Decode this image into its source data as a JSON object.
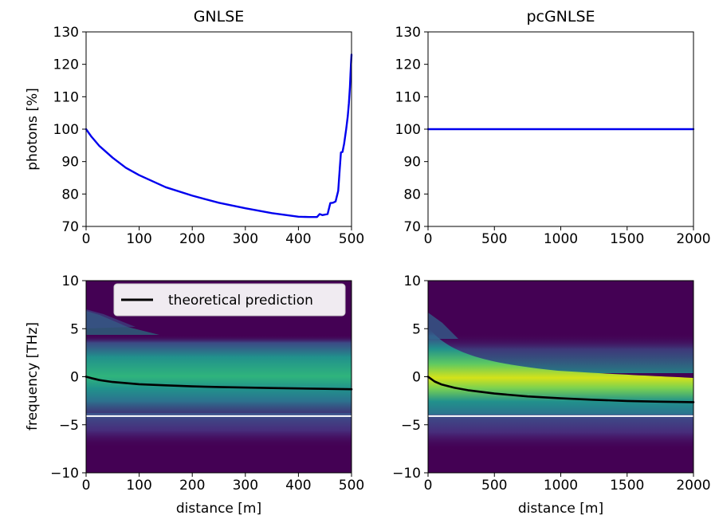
{
  "chart_data": [
    {
      "type": "line",
      "title": "GNLSE",
      "xlabel": "",
      "ylabel": "photons [%]",
      "xlim": [
        0,
        500
      ],
      "ylim": [
        70,
        130
      ],
      "xticks": [
        "0",
        "100",
        "200",
        "300",
        "400",
        "500"
      ],
      "yticks": [
        "70",
        "80",
        "90",
        "100",
        "110",
        "120",
        "130"
      ],
      "series": [
        {
          "color": "#0000ee",
          "x": [
            0,
            10,
            25,
            50,
            75,
            100,
            150,
            200,
            250,
            300,
            350,
            400,
            420,
            435,
            440,
            445,
            455,
            460,
            465,
            470,
            475,
            478,
            480,
            483,
            486,
            490,
            493,
            495,
            497,
            498,
            499,
            500
          ],
          "y": [
            100,
            97.7,
            94.8,
            91.2,
            88.1,
            85.8,
            82.1,
            79.5,
            77.3,
            75.6,
            74.1,
            73.0,
            72.9,
            72.9,
            73.8,
            73.5,
            73.8,
            77.2,
            77.3,
            77.7,
            81,
            88,
            92.8,
            93,
            95.5,
            100,
            104,
            108,
            113,
            117,
            120,
            123
          ]
        }
      ]
    },
    {
      "type": "line",
      "title": "pcGNLSE",
      "xlabel": "",
      "ylabel": "",
      "xlim": [
        0,
        2000
      ],
      "ylim": [
        70,
        130
      ],
      "xticks": [
        "0",
        "500",
        "1000",
        "1500",
        "2000"
      ],
      "yticks": [
        "70",
        "80",
        "90",
        "100",
        "110",
        "120",
        "130"
      ],
      "series": [
        {
          "color": "#0000ee",
          "x": [
            0,
            2000
          ],
          "y": [
            100,
            100
          ]
        }
      ]
    },
    {
      "type": "heatmap",
      "title": "",
      "xlabel": "distance [m]",
      "ylabel": "frequency [THz]",
      "xlim": [
        0,
        500
      ],
      "ylim": [
        -10,
        10
      ],
      "xticks": [
        "0",
        "100",
        "200",
        "300",
        "400",
        "500"
      ],
      "yticks": [
        "−10",
        "−5",
        "0",
        "5",
        "10"
      ],
      "colormap": "viridis",
      "white_line_y": -4.1,
      "legend": {
        "position": "upper-right",
        "entries": [
          {
            "label": "theoretical prediction",
            "color": "#000000"
          }
        ]
      },
      "series": [
        {
          "name": "theoretical prediction",
          "color": "#000000",
          "x": [
            0,
            10,
            25,
            50,
            100,
            150,
            200,
            250,
            300,
            350,
            400,
            450,
            500
          ],
          "y": [
            0,
            -0.15,
            -0.35,
            -0.55,
            -0.78,
            -0.9,
            -1.0,
            -1.07,
            -1.13,
            -1.18,
            -1.22,
            -1.26,
            -1.3
          ]
        }
      ]
    },
    {
      "type": "heatmap",
      "title": "",
      "xlabel": "distance [m]",
      "ylabel": "",
      "xlim": [
        0,
        2000
      ],
      "ylim": [
        -10,
        10
      ],
      "xticks": [
        "0",
        "500",
        "1000",
        "1500",
        "2000"
      ],
      "yticks": [
        "−10",
        "−5",
        "0",
        "5",
        "10"
      ],
      "colormap": "viridis",
      "white_line_y": -4.1,
      "series": [
        {
          "color": "#000000",
          "x": [
            0,
            50,
            100,
            200,
            300,
            500,
            750,
            1000,
            1250,
            1500,
            1750,
            2000
          ],
          "y": [
            0,
            -0.5,
            -0.8,
            -1.15,
            -1.4,
            -1.75,
            -2.05,
            -2.25,
            -2.4,
            -2.52,
            -2.6,
            -2.65
          ]
        }
      ]
    }
  ]
}
